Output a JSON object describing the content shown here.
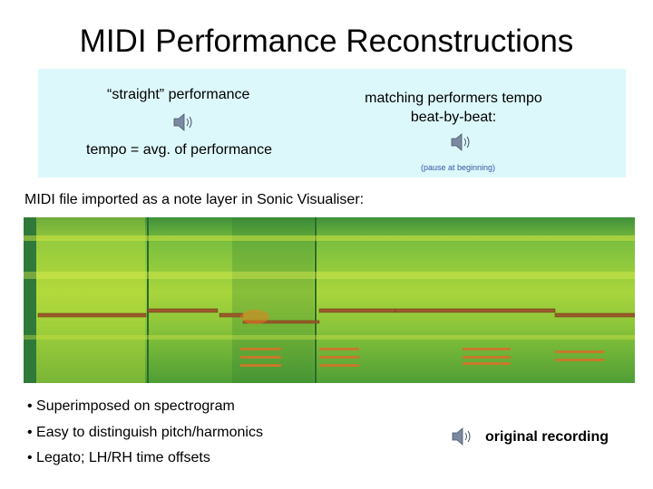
{
  "title": "MIDI Performance Reconstructions",
  "panel": {
    "left": {
      "label": "“straight” performance",
      "caption": "tempo = avg. of performance"
    },
    "right": {
      "label": "matching performers tempo beat-by-beat:",
      "note": "(pause at beginning)"
    }
  },
  "subtitle": "MIDI file imported as a note layer in Sonic Visualiser:",
  "bullets": [
    "• Superimposed on spectrogram",
    "• Easy to distinguish pitch/harmonics",
    "• Legato; LH/RH time offsets"
  ],
  "link": "original recording"
}
